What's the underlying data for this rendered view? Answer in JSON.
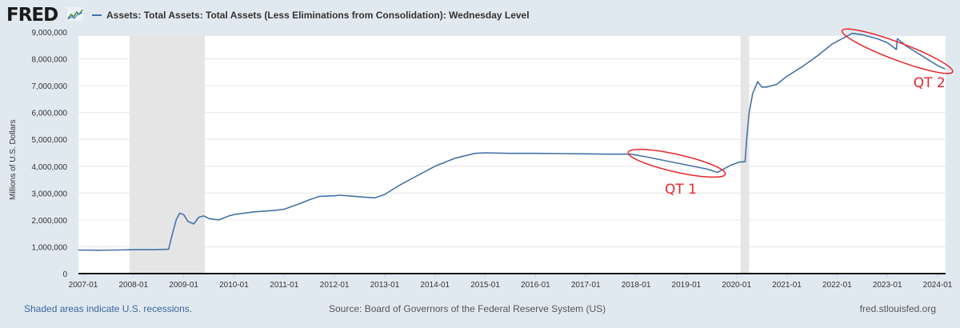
{
  "header": {
    "logo_text": "FRED",
    "legend_label": "Assets: Total Assets: Total Assets (Less Eliminations from Consolidation): Wednesday Level"
  },
  "footer": {
    "recession_note": "Shaded areas indicate U.S. recessions.",
    "source": "Source: Board of Governors of the Federal Reserve System (US)",
    "site": "fred.stlouisfed.org"
  },
  "colors": {
    "series": "#4572a7",
    "recession": "#e5e5e5",
    "annotation": "#e8262c",
    "background": "#e1e9f0"
  },
  "chart_data": {
    "type": "line",
    "title": "Assets: Total Assets: Total Assets (Less Eliminations from Consolidation): Wednesday Level",
    "xlabel": "",
    "ylabel": "Millions of U.S. Dollars",
    "xlim": [
      2006.9,
      2024.17
    ],
    "ylim": [
      0,
      9000000
    ],
    "grid": true,
    "legend_position": "top-left",
    "y_ticks": [
      0,
      1000000,
      2000000,
      3000000,
      4000000,
      5000000,
      6000000,
      7000000,
      8000000,
      9000000
    ],
    "y_tick_labels": [
      "0",
      "1,000,000",
      "2,000,000",
      "3,000,000",
      "4,000,000",
      "5,000,000",
      "6,000,000",
      "7,000,000",
      "8,000,000",
      "9,000,000"
    ],
    "x_ticks": [
      2007,
      2008,
      2009,
      2010,
      2011,
      2012,
      2013,
      2014,
      2015,
      2016,
      2017,
      2018,
      2019,
      2020,
      2021,
      2022,
      2023,
      2024
    ],
    "x_tick_labels": [
      "2007-01",
      "2008-01",
      "2009-01",
      "2010-01",
      "2011-01",
      "2012-01",
      "2013-01",
      "2014-01",
      "2015-01",
      "2016-01",
      "2017-01",
      "2018-01",
      "2019-01",
      "2020-01",
      "2021-01",
      "2022-01",
      "2023-01",
      "2024-01"
    ],
    "recessions": [
      {
        "start": 2007.92,
        "end": 2009.42
      },
      {
        "start": 2020.08,
        "end": 2020.25
      }
    ],
    "series": [
      {
        "name": "Assets: Total Assets: Total Assets (Less Eliminations from Consolidation): Wednesday Level",
        "x": [
          2006.9,
          2007.3,
          2007.7,
          2008.0,
          2008.4,
          2008.7,
          2008.75,
          2008.85,
          2008.92,
          2009.0,
          2009.08,
          2009.2,
          2009.3,
          2009.4,
          2009.5,
          2009.7,
          2009.9,
          2010.0,
          2010.4,
          2010.8,
          2011.0,
          2011.3,
          2011.5,
          2011.7,
          2012.0,
          2012.1,
          2012.4,
          2012.8,
          2013.0,
          2013.3,
          2013.7,
          2014.0,
          2014.4,
          2014.8,
          2015.0,
          2015.5,
          2016.0,
          2016.5,
          2017.0,
          2017.5,
          2017.9,
          2018.2,
          2018.6,
          2019.0,
          2019.4,
          2019.62,
          2019.75,
          2019.9,
          2020.05,
          2020.17,
          2020.2,
          2020.25,
          2020.32,
          2020.42,
          2020.5,
          2020.6,
          2020.8,
          2021.0,
          2021.3,
          2021.6,
          2021.9,
          2022.15,
          2022.3,
          2022.5,
          2022.8,
          2023.0,
          2023.18,
          2023.2,
          2023.4,
          2023.7,
          2024.0,
          2024.15
        ],
        "values": [
          880000,
          870000,
          880000,
          890000,
          890000,
          905000,
          1300000,
          2000000,
          2250000,
          2200000,
          1950000,
          1850000,
          2100000,
          2150000,
          2050000,
          2000000,
          2150000,
          2200000,
          2300000,
          2350000,
          2400000,
          2600000,
          2750000,
          2880000,
          2900000,
          2920000,
          2880000,
          2820000,
          2950000,
          3300000,
          3700000,
          4000000,
          4300000,
          4480000,
          4500000,
          4480000,
          4480000,
          4470000,
          4460000,
          4450000,
          4450000,
          4350000,
          4200000,
          4050000,
          3900000,
          3770000,
          3900000,
          4050000,
          4150000,
          4170000,
          5000000,
          6000000,
          6700000,
          7150000,
          6950000,
          6950000,
          7050000,
          7350000,
          7700000,
          8100000,
          8550000,
          8800000,
          8950000,
          8900000,
          8750000,
          8600000,
          8350000,
          8750000,
          8450000,
          8100000,
          7750000,
          7620000
        ]
      }
    ],
    "annotations": [
      {
        "text": "QT 1",
        "x_start": 2018.0,
        "x_end": 2019.62,
        "y_start": 4450000,
        "y_end": 3770000
      },
      {
        "text": "QT 2",
        "x_start": 2022.25,
        "x_end": 2024.15,
        "y_start": 8950000,
        "y_end": 7620000
      }
    ]
  }
}
